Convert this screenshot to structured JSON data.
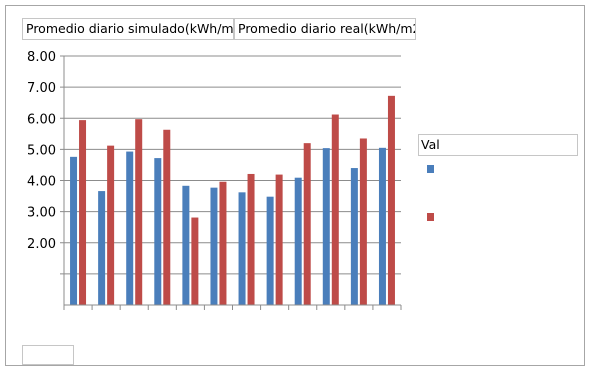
{
  "headers": {
    "series1": "Promedio diario simulado(kWh/m...",
    "series2": "Promedio diario real(kWh/m2)"
  },
  "legend": {
    "title": "Val"
  },
  "chart_data": {
    "type": "bar",
    "categories": [
      "",
      "",
      "",
      "",
      "",
      "",
      "",
      "",
      "",
      "",
      "",
      ""
    ],
    "series": [
      {
        "name": "Promedio diario simulado(kWh/m...",
        "color": "#4a7ebb",
        "values": [
          4.76,
          3.66,
          4.93,
          4.72,
          3.83,
          3.77,
          3.62,
          3.48,
          4.09,
          5.04,
          4.4,
          5.05
        ]
      },
      {
        "name": "Promedio diario real(kWh/m2)",
        "color": "#be4b48",
        "values": [
          5.94,
          5.12,
          5.97,
          5.63,
          2.81,
          3.96,
          4.21,
          4.19,
          5.2,
          6.12,
          5.35,
          6.72
        ]
      }
    ],
    "ylim": [
      0,
      8
    ],
    "yticks": [
      "",
      "",
      "2.00",
      "3.00",
      "4.00",
      "5.00",
      "6.00",
      "7.00",
      "8.00"
    ],
    "grid": true,
    "legend_position": "right"
  }
}
